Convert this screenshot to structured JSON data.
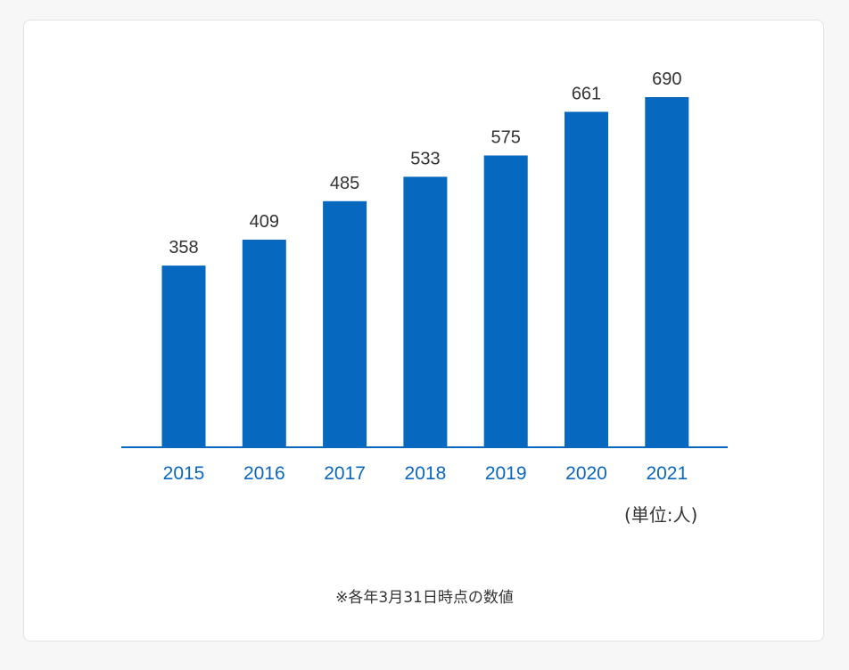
{
  "chart_data": {
    "type": "bar",
    "categories": [
      "2015",
      "2016",
      "2017",
      "2018",
      "2019",
      "2020",
      "2021"
    ],
    "values": [
      358,
      409,
      485,
      533,
      575,
      661,
      690
    ],
    "ylim": [
      0,
      690
    ],
    "grid": false,
    "bar_color": "#0668bf",
    "axis_color": "#0668bf",
    "category_label_color": "#0b66bf",
    "value_label_color": "#333333"
  },
  "unit_label": "(単位:人)",
  "footnote": "※各年3月31日時点の数値"
}
